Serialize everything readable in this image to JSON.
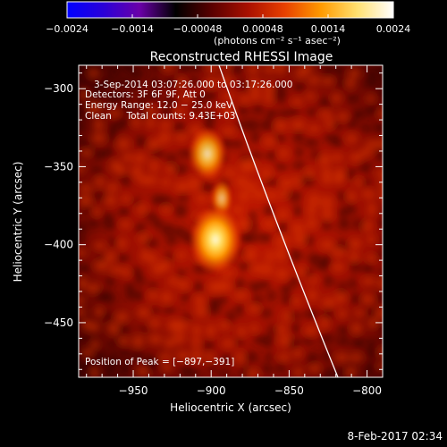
{
  "colorbar": {
    "tick_labels": [
      "−0.0024",
      "−0.0014",
      "−0.00048",
      "0.00048",
      "0.0014",
      "0.0024"
    ],
    "unit_label": "(photons cm⁻² s⁻¹ asec⁻²)",
    "gradient": [
      "#0000ff",
      "#2a00d8",
      "#6a00a8",
      "#000000",
      "#5a0000",
      "#aa1000",
      "#e84000",
      "#ff9a00",
      "#ffe070",
      "#ffffff"
    ]
  },
  "image": {
    "title": "Reconstructed RHESSI Image",
    "info_lines": [
      "3-Sep-2014 03:07:26.000 to 03:17:26.000",
      "Detectors: 3F 6F 9F, Att 0",
      "Energy Range: 12.0 − 25.0 keV",
      "Clean     Total counts: 9.43E+03"
    ],
    "peak_label": "Position of Peak = [−897,−391]",
    "x_ticks": [
      "−950",
      "−900",
      "−850",
      "−800"
    ],
    "y_ticks": [
      "−300",
      "−350",
      "−400",
      "−450"
    ],
    "xlabel": "Heliocentric X (arcsec)",
    "ylabel": "Heliocentric Y (arcsec)",
    "date_stamp": "8-Feb-2017 02:34"
  }
}
